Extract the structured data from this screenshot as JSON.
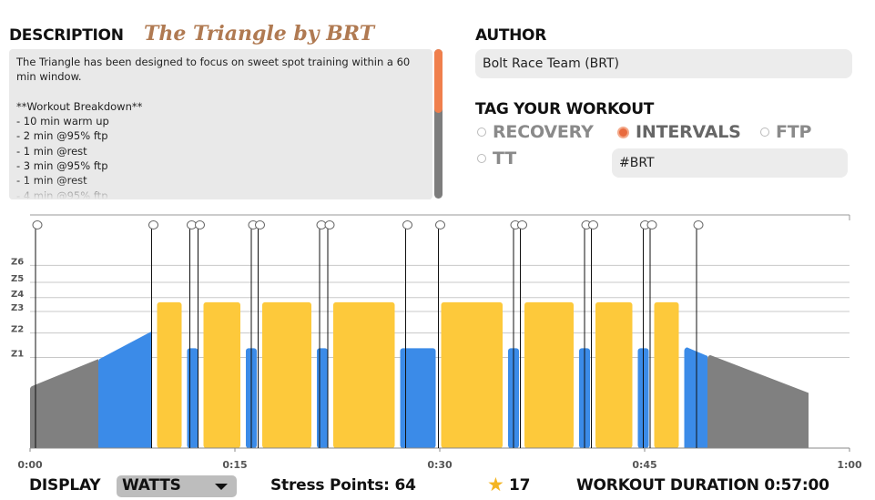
{
  "description": {
    "heading": "DESCRIPTION",
    "workout_title": "The Triangle by BRT",
    "text": "The Triangle has been designed to focus on sweet spot training within a 60 min window.\n\n**Workout Breakdown**\n- 10 min warm up\n- 2 min @95% ftp\n- 1 min @rest\n- 3 min @95% ftp\n- 1 min @rest\n- 4 min @95% ftp"
  },
  "author": {
    "heading": "AUTHOR",
    "value": "Bolt Race Team (BRT)"
  },
  "tags": {
    "heading": "TAG YOUR WORKOUT",
    "options": [
      {
        "label": "RECOVERY",
        "selected": false
      },
      {
        "label": "INTERVALS",
        "selected": true
      },
      {
        "label": "FTP",
        "selected": false
      },
      {
        "label": "TT",
        "selected": false
      }
    ],
    "hashtag": "#BRT"
  },
  "chart_data": {
    "type": "area",
    "xlabel": "",
    "ylabel": "",
    "x_ticks": [
      "0:00",
      "0:15",
      "0:30",
      "0:45",
      "1:00"
    ],
    "xlim_minutes": [
      0,
      60
    ],
    "zone_labels": [
      "Z6",
      "Z5",
      "Z4",
      "Z3",
      "Z2",
      "Z1"
    ],
    "zone_levels": {
      "Z1": 0.59,
      "Z2": 0.75,
      "Z3": 0.89,
      "Z4": 0.98,
      "Z5": 1.08,
      "Z6": 1.19
    },
    "ylim": [
      0,
      1.4
    ],
    "colors": {
      "warmup": "#808080",
      "recovery": "#3b8be8",
      "sweetspot": "#fdc93b",
      "grid": "#c8c8c8"
    },
    "segments": [
      {
        "kind": "ramp",
        "zone": "warmup",
        "start": 0.0,
        "end": 5.0,
        "p0": 0.4,
        "p1": 0.58
      },
      {
        "kind": "ramp",
        "zone": "recovery",
        "start": 5.0,
        "end": 8.9,
        "p0": 0.58,
        "p1": 0.76
      },
      {
        "kind": "steady",
        "zone": "sweetspot",
        "start": 9.3,
        "end": 11.1,
        "power": 0.95
      },
      {
        "kind": "steady",
        "zone": "recovery",
        "start": 11.5,
        "end": 12.3,
        "power": 0.65
      },
      {
        "kind": "steady",
        "zone": "sweetspot",
        "start": 12.7,
        "end": 15.4,
        "power": 0.95
      },
      {
        "kind": "steady",
        "zone": "recovery",
        "start": 15.8,
        "end": 16.6,
        "power": 0.65
      },
      {
        "kind": "steady",
        "zone": "sweetspot",
        "start": 17.0,
        "end": 20.6,
        "power": 0.95
      },
      {
        "kind": "steady",
        "zone": "recovery",
        "start": 21.0,
        "end": 21.8,
        "power": 0.65
      },
      {
        "kind": "steady",
        "zone": "sweetspot",
        "start": 22.2,
        "end": 26.7,
        "power": 0.95
      },
      {
        "kind": "steady",
        "zone": "recovery",
        "start": 27.1,
        "end": 29.7,
        "power": 0.65
      },
      {
        "kind": "steady",
        "zone": "sweetspot",
        "start": 30.1,
        "end": 34.6,
        "power": 0.95
      },
      {
        "kind": "steady",
        "zone": "recovery",
        "start": 35.0,
        "end": 35.8,
        "power": 0.65
      },
      {
        "kind": "steady",
        "zone": "sweetspot",
        "start": 36.2,
        "end": 39.8,
        "power": 0.95
      },
      {
        "kind": "steady",
        "zone": "recovery",
        "start": 40.2,
        "end": 41.0,
        "power": 0.65
      },
      {
        "kind": "steady",
        "zone": "sweetspot",
        "start": 41.4,
        "end": 44.1,
        "power": 0.95
      },
      {
        "kind": "steady",
        "zone": "recovery",
        "start": 44.5,
        "end": 45.3,
        "power": 0.65
      },
      {
        "kind": "steady",
        "zone": "sweetspot",
        "start": 45.7,
        "end": 47.5,
        "power": 0.95
      },
      {
        "kind": "ramp",
        "zone": "recovery",
        "start": 47.9,
        "end": 49.6,
        "p0": 0.65,
        "p1": 0.6
      },
      {
        "kind": "ramp",
        "zone": "warmup",
        "start": 49.6,
        "end": 57.0,
        "p0": 0.6,
        "p1": 0.36
      }
    ],
    "text_events_minutes": [
      0.4,
      8.9,
      11.7,
      12.3,
      16.2,
      16.7,
      21.2,
      21.8,
      27.5,
      29.9,
      35.4,
      35.9,
      40.6,
      41.1,
      44.9,
      45.4,
      48.8
    ]
  },
  "footer": {
    "display_label": "DISPLAY",
    "display_value": "WATTS",
    "stress_points": "Stress Points: 64",
    "star_count": "17",
    "duration": "WORKOUT DURATION 0:57:00"
  }
}
